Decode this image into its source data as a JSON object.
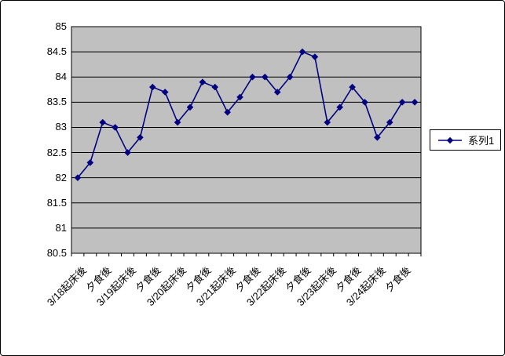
{
  "chart_data": {
    "type": "line",
    "title": "",
    "xlabel": "",
    "ylabel": "",
    "n_points": 28,
    "x_tick_labels": [
      "3/18起床後",
      "夕食後",
      "3/19起床後",
      "夕食後",
      "3/20起床後",
      "夕食後",
      "3/21起床後",
      "夕食後",
      "3/22起床後",
      "夕食後",
      "3/23起床後",
      "夕食後",
      "3/24起床後",
      "夕食後"
    ],
    "x_label_interval": 2,
    "series": [
      {
        "name": "系列1",
        "values": [
          82.0,
          82.3,
          83.1,
          83.0,
          82.5,
          82.8,
          83.8,
          83.7,
          83.1,
          83.4,
          83.9,
          83.8,
          83.3,
          83.6,
          84.0,
          84.0,
          83.7,
          84.0,
          84.5,
          84.4,
          83.1,
          83.4,
          83.8,
          83.5,
          82.8,
          83.1,
          83.5,
          83.5
        ]
      }
    ],
    "ylim": [
      80.5,
      85
    ],
    "y_tick_step": 0.5,
    "y_tick_labels": [
      "85",
      "84.5",
      "84",
      "83.5",
      "83",
      "82.5",
      "82",
      "81.5",
      "81",
      "80.5"
    ],
    "grid": true,
    "marker": "diamond",
    "legend_position": "right",
    "colors": {
      "series_line": "#000080",
      "plot_background": "#c0c0c0",
      "gridline": "#000000",
      "axis": "#000000",
      "chart_background": "#ffffff",
      "text": "#000000"
    }
  }
}
